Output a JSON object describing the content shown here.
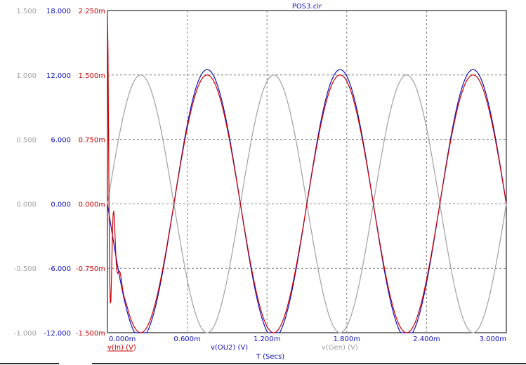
{
  "chart_data": {
    "type": "line",
    "title": "POS3.cir",
    "xlabel": "T (Secs)",
    "xlim": [
      0,
      0.003
    ],
    "x_ticks": [
      "0.000m",
      "0.600m",
      "1.200m",
      "1.800m",
      "2.400m",
      "3.000m"
    ],
    "axes": [
      {
        "id": "gen",
        "ylim": [
          -1.0,
          1.5
        ],
        "color": "#a0a0a0",
        "ticks": [
          "1.500",
          "1.000",
          "0.500",
          "0.000",
          "-0.500",
          "-1.000"
        ]
      },
      {
        "id": "ou2",
        "ylim": [
          -12.0,
          18.0
        ],
        "color": "#1010c0",
        "ticks": [
          "18.000",
          "12.000",
          "6.000",
          "0.000",
          "-6.000",
          "-12.000"
        ]
      },
      {
        "id": "in",
        "ylim": [
          -0.0015,
          0.00225
        ],
        "color": "#cc0000",
        "ticks": [
          "2.250m",
          "1.500m",
          "0.750m",
          "0.000m",
          "-0.750m",
          "-1.500m"
        ]
      }
    ],
    "grid": true,
    "series": [
      {
        "name": "v(In) (V)",
        "axis": "in",
        "color": "#cc0000",
        "model": "sine",
        "amplitude": 0.0015,
        "frequency_hz": 1000,
        "phase_deg": 180,
        "initial_transient": true
      },
      {
        "name": "v(OU2) (V)",
        "axis": "ou2",
        "color": "#1010c0",
        "model": "sine",
        "amplitude": 12.5,
        "frequency_hz": 1000,
        "phase_deg": 180
      },
      {
        "name": "v(Gen) (V)",
        "axis": "gen",
        "color": "#a0a0a0",
        "model": "sine",
        "amplitude": 1.0,
        "frequency_hz": 1000,
        "phase_deg": 0
      }
    ]
  }
}
